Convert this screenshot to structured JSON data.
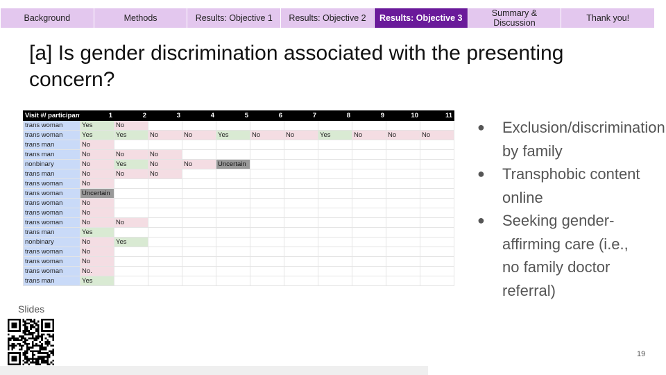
{
  "nav": {
    "tabs": [
      {
        "label": "Background",
        "active": false
      },
      {
        "label": "Methods",
        "active": false
      },
      {
        "label": "Results: Objective 1",
        "active": false
      },
      {
        "label": "Results: Objective 2",
        "active": false
      },
      {
        "label": "Results: Objective 3",
        "active": true
      },
      {
        "label": "Summary & Discussion",
        "active": false
      },
      {
        "label": "Thank you!",
        "active": false
      }
    ],
    "colors": {
      "tab_bg": "#e3c7ee",
      "active_bg": "#6a1a9a",
      "active_text": "#ffffff"
    }
  },
  "title": "[a] Is gender discrimination associated with the presenting concern?",
  "sheet": {
    "header": [
      "Visit #/ participant",
      "1",
      "2",
      "3",
      "4",
      "5",
      "6",
      "7",
      "8",
      "9",
      "10",
      "11"
    ],
    "rows": [
      [
        "trans woman",
        "Yes",
        "No"
      ],
      [
        "trans woman",
        "Yes",
        "Yes",
        "No",
        "No",
        "Yes",
        "No",
        "No",
        "Yes",
        "No",
        "No",
        "No"
      ],
      [
        "trans man",
        "No"
      ],
      [
        "trans man",
        "No",
        "No",
        "No"
      ],
      [
        "nonbinary",
        "No",
        "Yes",
        "No",
        "No",
        "Uncertain"
      ],
      [
        "trans man",
        "No",
        "No",
        "No"
      ],
      [
        "trans woman",
        "No"
      ],
      [
        "trans woman",
        "Uncertain"
      ],
      [
        "trans woman",
        "No"
      ],
      [
        "trans woman",
        "No"
      ],
      [
        "trans woman",
        "No",
        "No"
      ],
      [
        "trans man",
        "Yes"
      ],
      [
        "nonbinary",
        "No",
        "Yes"
      ],
      [
        "trans woman",
        "No"
      ],
      [
        "trans woman",
        "No"
      ],
      [
        "trans woman",
        "No."
      ],
      [
        "trans man",
        "Yes"
      ]
    ],
    "colors": {
      "participant": "#c9daf8",
      "yes": "#d9ead3",
      "no": "#f4dde3",
      "uncertain": "#999999",
      "header": "#000000"
    }
  },
  "bullets": [
    "Exclusion/discrimination by family",
    "Transphobic content online",
    "Seeking gender-affirming care (i.e., no family doctor referral)"
  ],
  "slides_label": "Slides",
  "qr_icon": "qr-code-icon",
  "page_number": "19"
}
